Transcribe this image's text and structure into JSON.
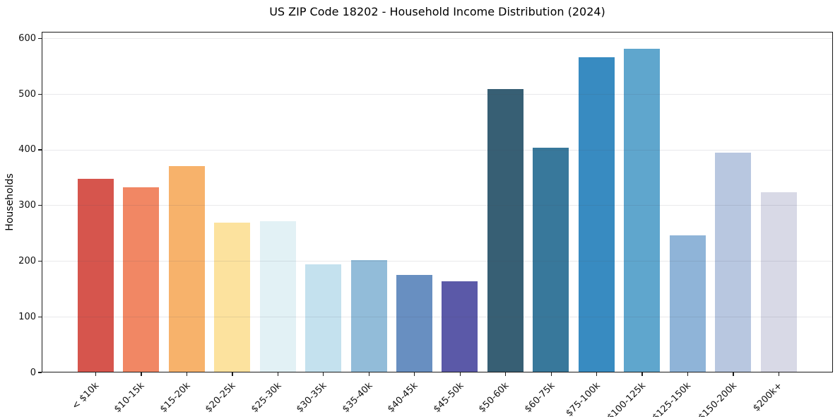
{
  "title": "US ZIP Code 18202 - Household Income Distribution (2024)",
  "chart_data": {
    "type": "bar",
    "title": "US ZIP Code 18202 - Household Income Distribution (2024)",
    "xlabel": "",
    "ylabel": "Households",
    "categories": [
      "< $10k",
      "$10-15k",
      "$15-20k",
      "$20-25k",
      "$25-30k",
      "$30-35k",
      "$35-40k",
      "$40-45k",
      "$45-50k",
      "$50-60k",
      "$60-75k",
      "$75-100k",
      "$100-125k",
      "$125-150k",
      "$150-200k",
      "$200k+"
    ],
    "values": [
      348,
      333,
      371,
      270,
      272,
      195,
      202,
      175,
      164,
      510,
      404,
      567,
      582,
      247,
      395,
      324
    ],
    "bar_colors": [
      "#d6554d",
      "#f18764",
      "#f7b26b",
      "#fce29e",
      "#e2f1f5",
      "#c4e1ee",
      "#92bcd9",
      "#688fc1",
      "#5b59a8",
      "#375f74",
      "#38789b",
      "#388bc1",
      "#5fa6cd",
      "#8fb4d8",
      "#b8c7e0",
      "#d8d9e6"
    ],
    "yticks": [
      0,
      100,
      200,
      300,
      400,
      500,
      600
    ],
    "ylim": [
      0,
      612
    ],
    "grid": "horizontal-over-bars",
    "legend": "none",
    "x_tick_rotation_deg": 45
  }
}
